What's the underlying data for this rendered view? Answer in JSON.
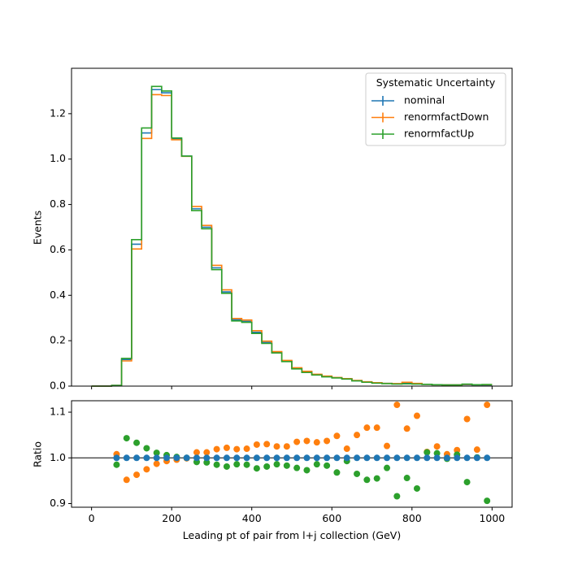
{
  "chart_data": [
    {
      "type": "histogram-step",
      "ylabel": "Events",
      "xlim": [
        -50,
        1050
      ],
      "ylim": [
        0,
        1.4
      ],
      "x_ticks": [
        0,
        200,
        400,
        600,
        800,
        1000
      ],
      "y_ticks": [
        0.0,
        0.2,
        0.4,
        0.6,
        0.8,
        1.0,
        1.2
      ],
      "y_tick_labels": [
        "0.0",
        "0.2",
        "0.4",
        "0.6",
        "0.8",
        "1.0",
        "1.2"
      ],
      "legend": {
        "title": "Systematic Uncertainty",
        "position": "top-right"
      },
      "bin_edges": [
        0,
        25,
        50,
        75,
        100,
        125,
        150,
        175,
        200,
        225,
        250,
        275,
        300,
        325,
        350,
        375,
        400,
        425,
        450,
        475,
        500,
        525,
        550,
        575,
        600,
        625,
        650,
        675,
        700,
        725,
        750,
        775,
        800,
        825,
        850,
        875,
        900,
        925,
        950,
        975,
        1000
      ],
      "series": [
        {
          "name": "nominal",
          "color": "#1f77b4",
          "values": [
            0,
            0,
            0.003,
            0.117,
            0.625,
            1.115,
            1.306,
            1.292,
            1.088,
            1.013,
            0.781,
            0.7,
            0.521,
            0.415,
            0.292,
            0.285,
            0.237,
            0.192,
            0.148,
            0.11,
            0.078,
            0.062,
            0.05,
            0.042,
            0.037,
            0.032,
            0.024,
            0.018,
            0.014,
            0.012,
            0.01,
            0.012,
            0.01,
            0.008,
            0.006,
            0.005,
            0.005,
            0.006,
            0.005,
            0.004
          ]
        },
        {
          "name": "renormfactDown",
          "color": "#ff7f0e",
          "values": [
            0,
            0,
            0.003,
            0.111,
            0.604,
            1.091,
            1.284,
            1.28,
            1.085,
            1.012,
            0.791,
            0.708,
            0.532,
            0.424,
            0.298,
            0.291,
            0.244,
            0.198,
            0.152,
            0.113,
            0.081,
            0.065,
            0.052,
            0.044,
            0.038,
            0.033,
            0.025,
            0.019,
            0.015,
            0.012,
            0.011,
            0.017,
            0.012,
            0.008,
            0.006,
            0.005,
            0.005,
            0.008,
            0.006,
            0.006
          ]
        },
        {
          "name": "renormfactUp",
          "color": "#2ca02c",
          "values": [
            0,
            0,
            0.003,
            0.122,
            0.645,
            1.137,
            1.32,
            1.3,
            1.093,
            1.013,
            0.773,
            0.693,
            0.513,
            0.409,
            0.287,
            0.281,
            0.232,
            0.188,
            0.146,
            0.108,
            0.076,
            0.06,
            0.049,
            0.041,
            0.036,
            0.031,
            0.023,
            0.017,
            0.013,
            0.011,
            0.009,
            0.01,
            0.009,
            0.008,
            0.006,
            0.005,
            0.005,
            0.009,
            0.006,
            0.007
          ]
        }
      ]
    },
    {
      "type": "scatter",
      "xlabel": "Leading pt of pair from l+j collection (GeV)",
      "ylabel": "Ratio",
      "xlim": [
        -50,
        1050
      ],
      "ylim": [
        0.892,
        1.125
      ],
      "x_ticks": [
        0,
        200,
        400,
        600,
        800,
        1000
      ],
      "x_tick_labels": [
        "0",
        "200",
        "400",
        "600",
        "800",
        "1000"
      ],
      "y_ticks": [
        0.9,
        1.0,
        1.1
      ],
      "y_tick_labels": [
        "0.9",
        "1.0",
        "1.1"
      ],
      "reference_line": 1.0,
      "x": [
        62.5,
        87.5,
        112.5,
        137.5,
        162.5,
        187.5,
        212.5,
        237.5,
        262.5,
        287.5,
        312.5,
        337.5,
        362.5,
        387.5,
        412.5,
        437.5,
        462.5,
        487.5,
        512.5,
        537.5,
        562.5,
        587.5,
        612.5,
        637.5,
        662.5,
        687.5,
        712.5,
        737.5,
        762.5,
        787.5,
        812.5,
        837.5,
        862.5,
        887.5,
        912.5,
        937.5,
        962.5,
        987.5
      ],
      "series": [
        {
          "name": "nominal",
          "color": "#1f77b4",
          "values": [
            1,
            1,
            1,
            1,
            1,
            1,
            1,
            1,
            1,
            1,
            1,
            1,
            1,
            1,
            1,
            1,
            1,
            1,
            1,
            1,
            1,
            1,
            1,
            1,
            1,
            1,
            1,
            1,
            1,
            1,
            1,
            1,
            1,
            1,
            1,
            1,
            1,
            1
          ]
        },
        {
          "name": "renormfactDown",
          "color": "#ff7f0e",
          "values": [
            1.008,
            0.952,
            0.963,
            0.975,
            0.987,
            0.993,
            0.996,
            0.999,
            1.012,
            1.012,
            1.019,
            1.022,
            1.019,
            1.02,
            1.029,
            1.03,
            1.025,
            1.025,
            1.035,
            1.037,
            1.034,
            1.037,
            1.048,
            1.02,
            1.05,
            1.066,
            1.066,
            1.026,
            1.116,
            1.064,
            1.092,
            1.013,
            1.025,
            1.008,
            1.017,
            1.085,
            1.018,
            1.116
          ]
        },
        {
          "name": "renormfactUp",
          "color": "#2ca02c",
          "values": [
            0.985,
            1.043,
            1.033,
            1.021,
            1.011,
            1.006,
            1.002,
            1.0,
            0.991,
            0.99,
            0.985,
            0.981,
            0.986,
            0.985,
            0.977,
            0.981,
            0.986,
            0.983,
            0.978,
            0.973,
            0.986,
            0.983,
            0.968,
            0.993,
            0.965,
            0.952,
            0.955,
            0.978,
            0.916,
            0.956,
            0.933,
            1.012,
            1.01,
            0.998,
            1.007,
            0.947,
            1.001,
            0.906
          ]
        }
      ]
    }
  ]
}
